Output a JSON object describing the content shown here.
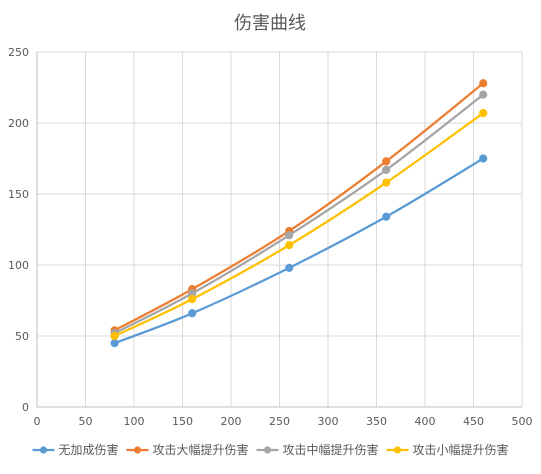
{
  "chart_data": {
    "type": "line",
    "title": "伤害曲线",
    "xlabel": "",
    "ylabel": "",
    "xlim": [
      0,
      500
    ],
    "ylim": [
      0,
      250
    ],
    "x_ticks": [
      0,
      50,
      100,
      150,
      200,
      250,
      300,
      350,
      400,
      450,
      500
    ],
    "y_ticks": [
      0,
      50,
      100,
      150,
      200,
      250
    ],
    "grid": true,
    "smooth": true,
    "legend_position": "bottom",
    "x": [
      80,
      160,
      260,
      360,
      460
    ],
    "series": [
      {
        "name": "无加成伤害",
        "color": "#5B9BD5",
        "values": [
          45,
          66,
          98,
          134,
          175
        ]
      },
      {
        "name": "攻击大幅提升伤害",
        "color": "#ED7D31",
        "values": [
          54,
          83,
          124,
          173,
          228
        ]
      },
      {
        "name": "攻击中幅提升伤害",
        "color": "#A5A5A5",
        "values": [
          52,
          80,
          121,
          167,
          220
        ]
      },
      {
        "name": "攻击小幅提升伤害",
        "color": "#FFC000",
        "values": [
          50,
          76,
          114,
          158,
          207
        ]
      }
    ]
  }
}
